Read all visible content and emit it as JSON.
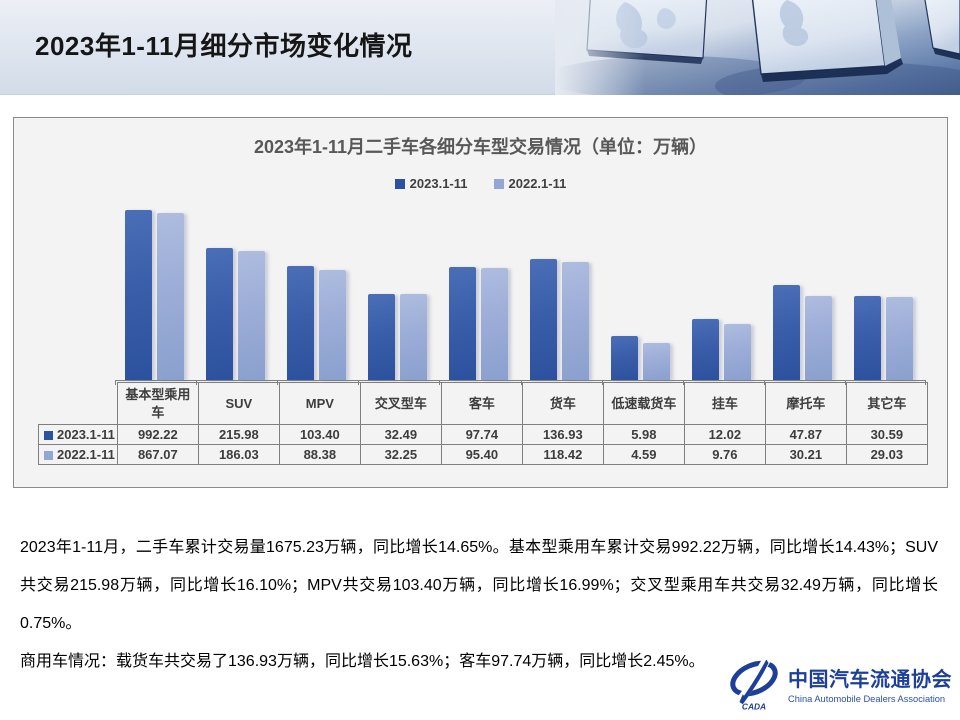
{
  "slide": {
    "title": "2023年1-11月细分市场变化情况"
  },
  "chart_data": {
    "type": "bar",
    "title": "2023年1-11月二手车各细分车型交易情况（单位：万辆）",
    "unit": "万辆",
    "scale": "log10",
    "value_axis_visible": false,
    "legend_position": "top",
    "categories": [
      "基本型乘用车",
      "SUV",
      "MPV",
      "交叉型车",
      "客车",
      "货车",
      "低速载货车",
      "挂车",
      "摩托车",
      "其它车"
    ],
    "series": [
      {
        "name": "2023.1-11",
        "color": "#2c519e",
        "values": [
          992.22,
          215.98,
          103.4,
          32.49,
          97.74,
          136.93,
          5.98,
          12.02,
          47.87,
          30.59
        ]
      },
      {
        "name": "2022.1-11",
        "color": "#93a7d5",
        "values": [
          867.07,
          186.03,
          88.38,
          32.25,
          95.4,
          118.42,
          4.59,
          9.76,
          30.21,
          29.03
        ]
      }
    ]
  },
  "body": {
    "paragraph1": "2023年1-11月，二手车累计交易量1675.23万辆，同比增长14.65%。基本型乘用车累计交易992.22万辆，同比增长14.43%；SUV共交易215.98万辆，同比增长16.10%；MPV共交易103.40万辆，同比增长16.99%；交叉型乘用车共交易32.49万辆，同比增长0.75%。",
    "paragraph2": "商用车情况：载货车共交易了136.93万辆，同比增长15.63%；客车97.74万辆，同比增长2.45%。"
  },
  "logo": {
    "emblem_text": "CADA",
    "name_cn": "中国汽车流通协会",
    "name_en": "China Automobile Dealers Association",
    "color": "#1d3f9a"
  }
}
